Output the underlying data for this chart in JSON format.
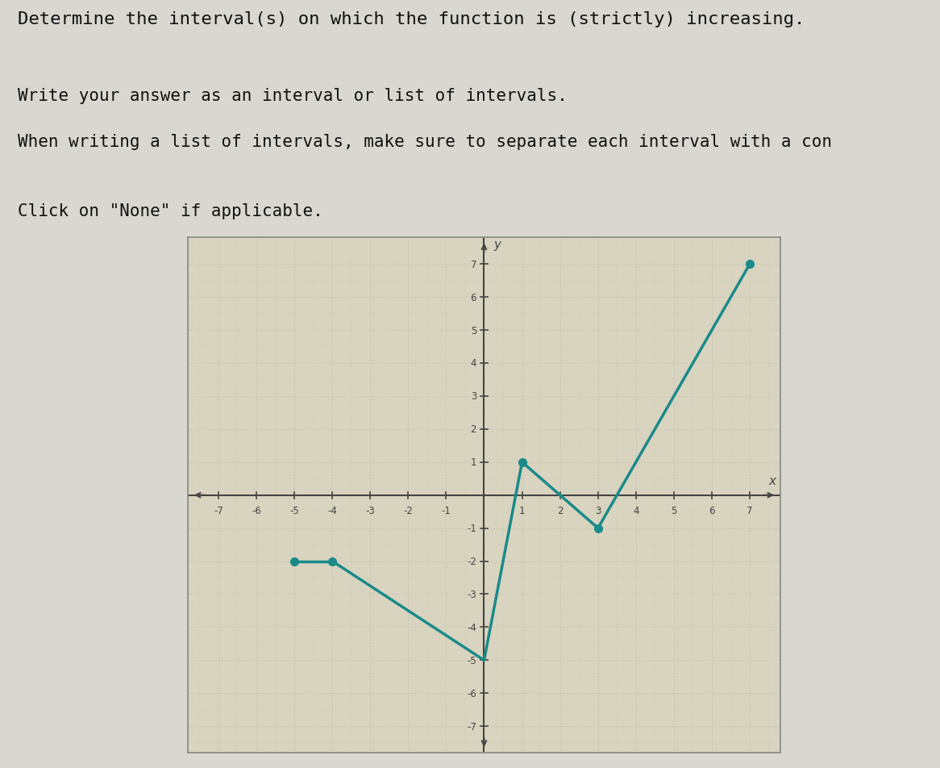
{
  "title_lines": [
    "Determine the interval(s) on which the function is (strictly) increasing.",
    "Write your answer as an interval or list of intervals.",
    "When writing a list of intervals, make sure to separate each interval with a con",
    "Click on \"None\" if applicable."
  ],
  "points": [
    [
      -5,
      -2
    ],
    [
      -4,
      -2
    ],
    [
      0,
      -5
    ],
    [
      1,
      1
    ],
    [
      3,
      -1
    ],
    [
      7,
      7
    ]
  ],
  "filled_dots": [
    [
      -5,
      -2
    ],
    [
      -4,
      -2
    ],
    [
      1,
      1
    ],
    [
      3,
      -1
    ],
    [
      7,
      7
    ]
  ],
  "line_color": "#1a8a8a",
  "dot_color": "#1a8a8a",
  "xlim": [
    -7.8,
    7.8
  ],
  "ylim": [
    -7.8,
    7.8
  ],
  "xticks": [
    -7,
    -6,
    -5,
    -4,
    -3,
    -2,
    -1,
    1,
    2,
    3,
    4,
    5,
    6,
    7
  ],
  "yticks": [
    -7,
    -6,
    -5,
    -4,
    -3,
    -2,
    -1,
    1,
    2,
    3,
    4,
    5,
    6,
    7
  ],
  "bg_color": "#d8d8d0",
  "plot_bg": "#d8d4c0",
  "grid_color": "#b8b8a0",
  "axis_color": "#444444",
  "text_color": "#111111",
  "font_size_text": 16,
  "dot_size": 7,
  "line_width": 2.5
}
